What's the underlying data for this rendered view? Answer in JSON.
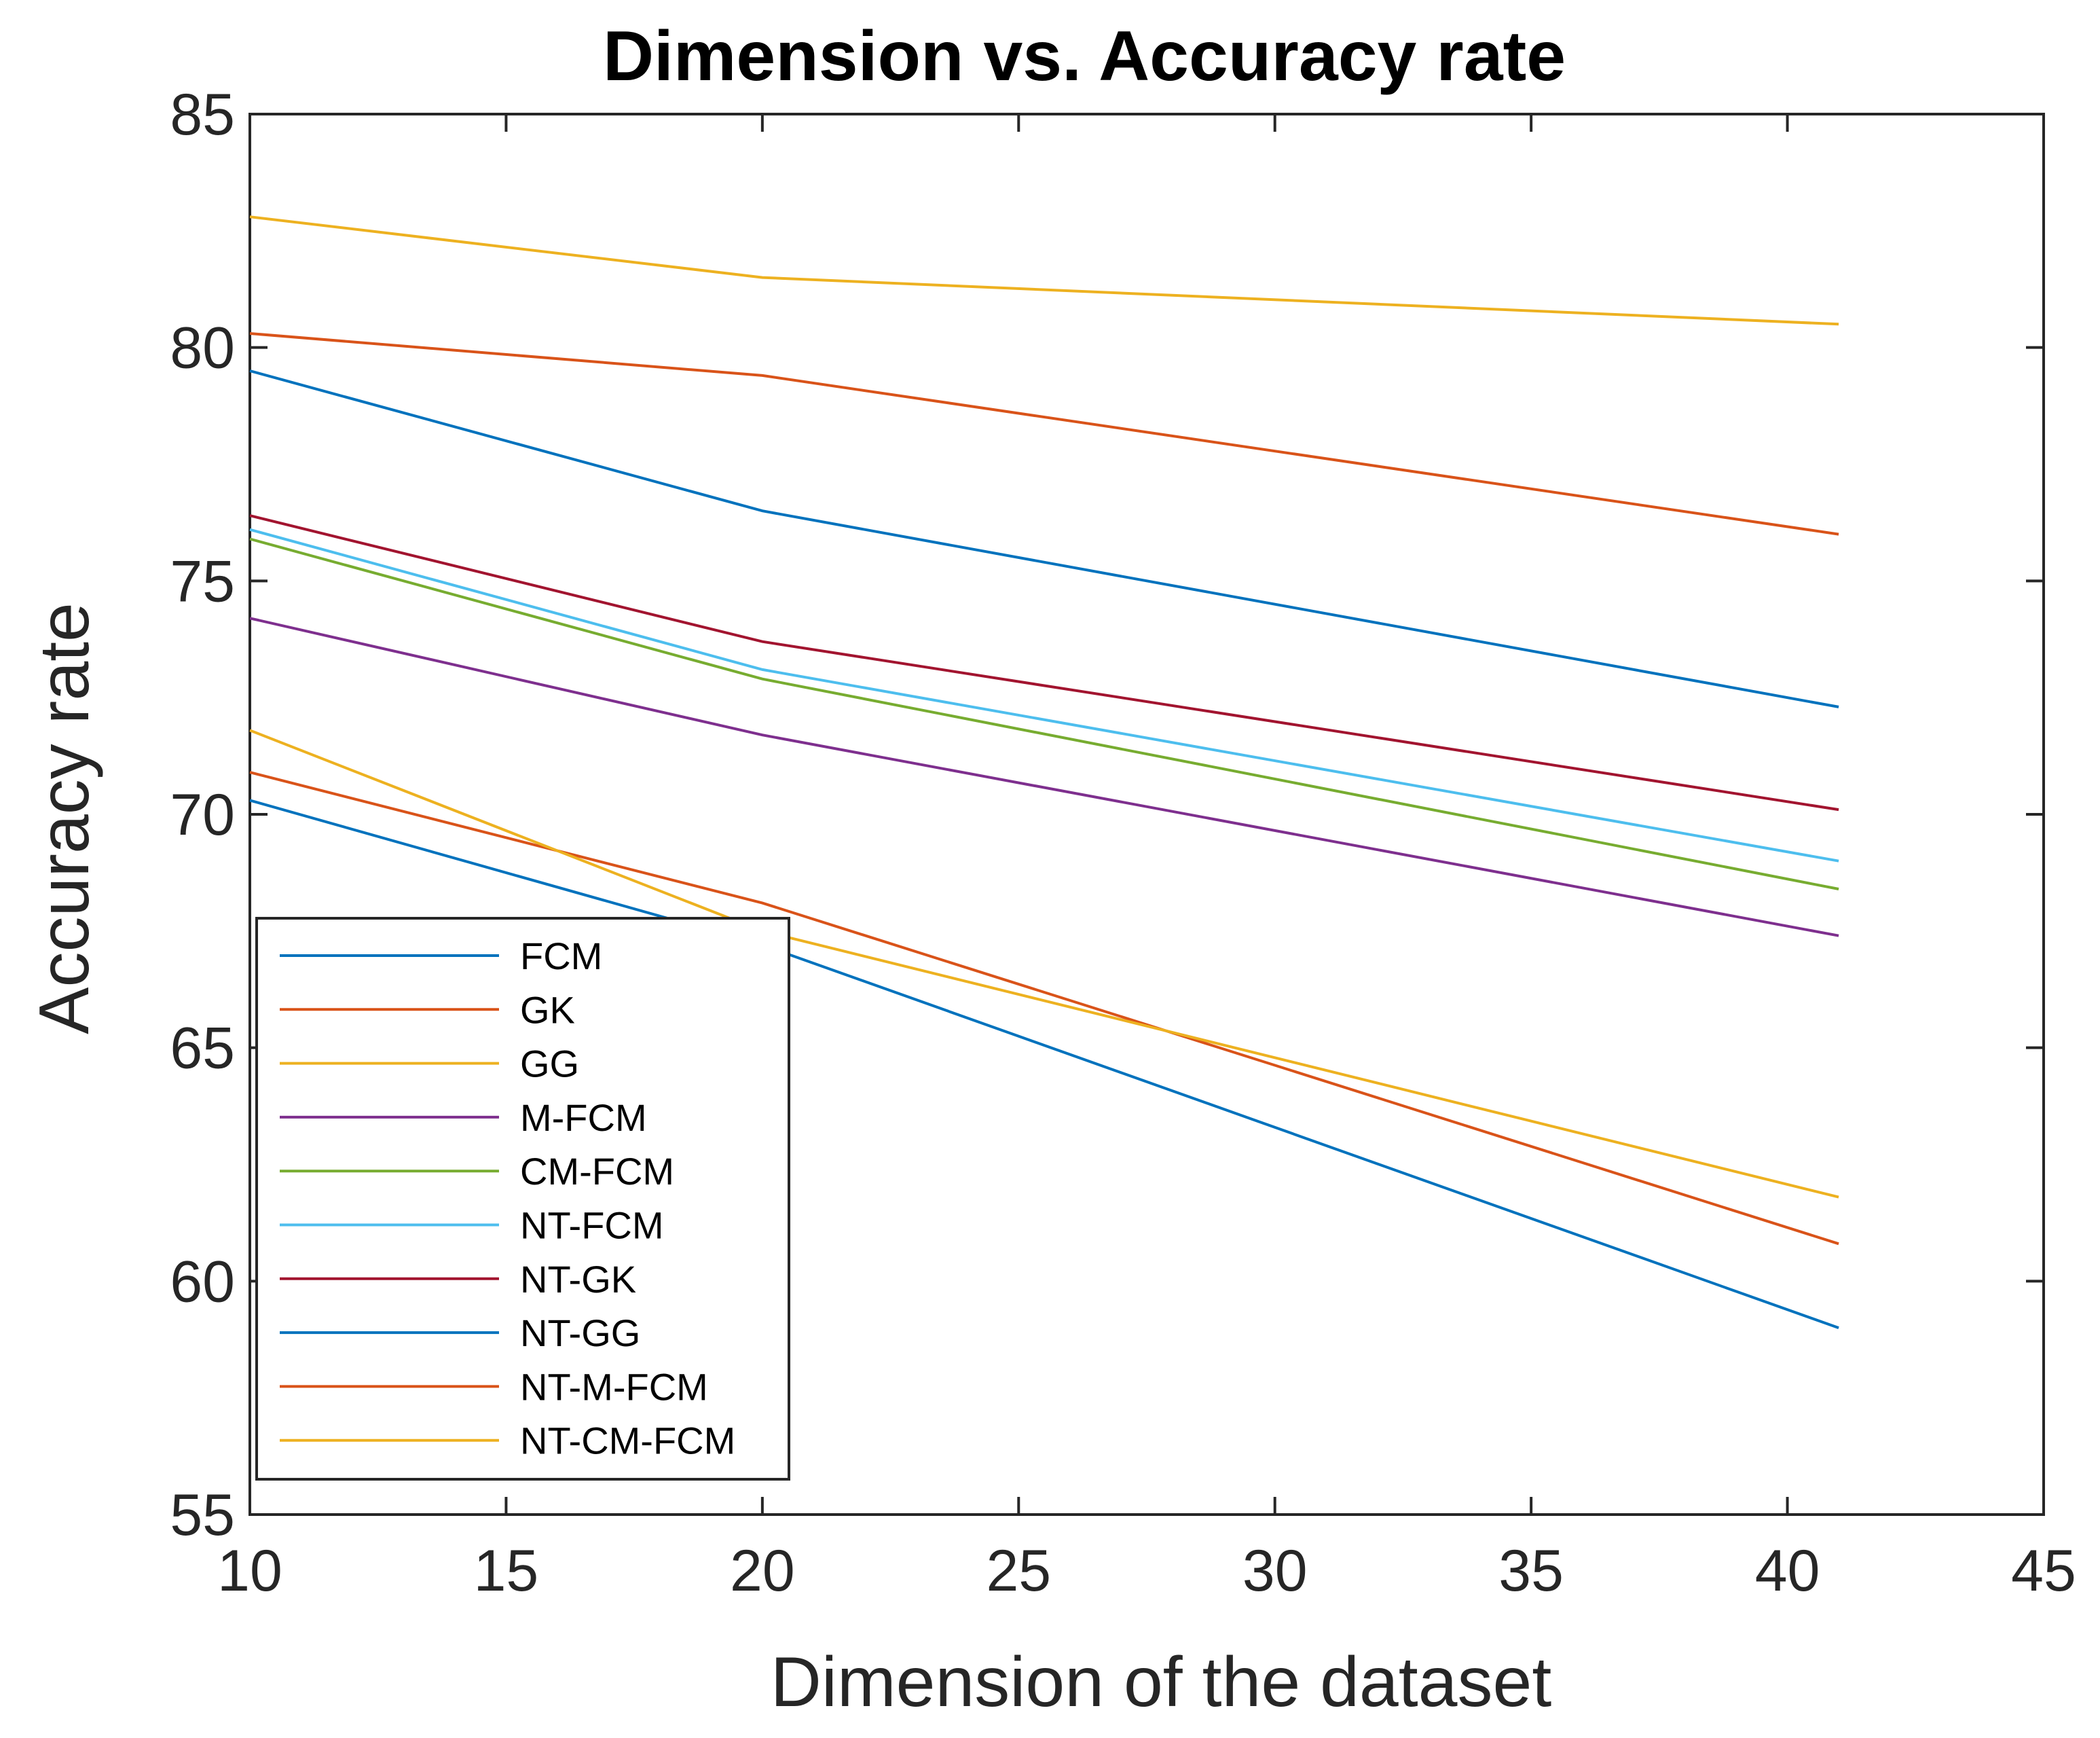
{
  "chart_data": {
    "type": "line",
    "title": "Dimension vs. Accuracy rate",
    "xlabel": "Dimension of the dataset",
    "ylabel": "Accuracy rate",
    "xlim": [
      10,
      45
    ],
    "ylim": [
      55,
      85
    ],
    "xticks": [
      10,
      15,
      20,
      25,
      30,
      35,
      40,
      45
    ],
    "yticks": [
      55,
      60,
      65,
      70,
      75,
      80,
      85
    ],
    "grid": false,
    "legend_position": "bottom-left",
    "x": [
      10,
      20,
      41
    ],
    "series": [
      {
        "name": "FCM",
        "color": "#0072bd",
        "values": [
          70.3,
          67.2,
          59.0
        ]
      },
      {
        "name": "GK",
        "color": "#d95319",
        "values": [
          70.9,
          68.1,
          60.8
        ]
      },
      {
        "name": "GG",
        "color": "#edb120",
        "values": [
          71.8,
          67.5,
          61.8
        ]
      },
      {
        "name": "M-FCM",
        "color": "#7e2f8e",
        "values": [
          74.2,
          71.7,
          67.4
        ]
      },
      {
        "name": "CM-FCM",
        "color": "#77ac30",
        "values": [
          75.9,
          72.9,
          68.4
        ]
      },
      {
        "name": "NT-FCM",
        "color": "#4dbeee",
        "values": [
          76.1,
          73.1,
          69.0
        ]
      },
      {
        "name": "NT-GK",
        "color": "#a2142f",
        "values": [
          76.4,
          73.7,
          70.1
        ]
      },
      {
        "name": "NT-GG",
        "color": "#0072bd",
        "values": [
          79.5,
          76.5,
          72.3
        ]
      },
      {
        "name": "NT-M-FCM",
        "color": "#d95319",
        "values": [
          80.3,
          79.4,
          76.0
        ]
      },
      {
        "name": "NT-CM-FCM",
        "color": "#edb120",
        "values": [
          82.8,
          81.5,
          80.5
        ]
      }
    ]
  }
}
